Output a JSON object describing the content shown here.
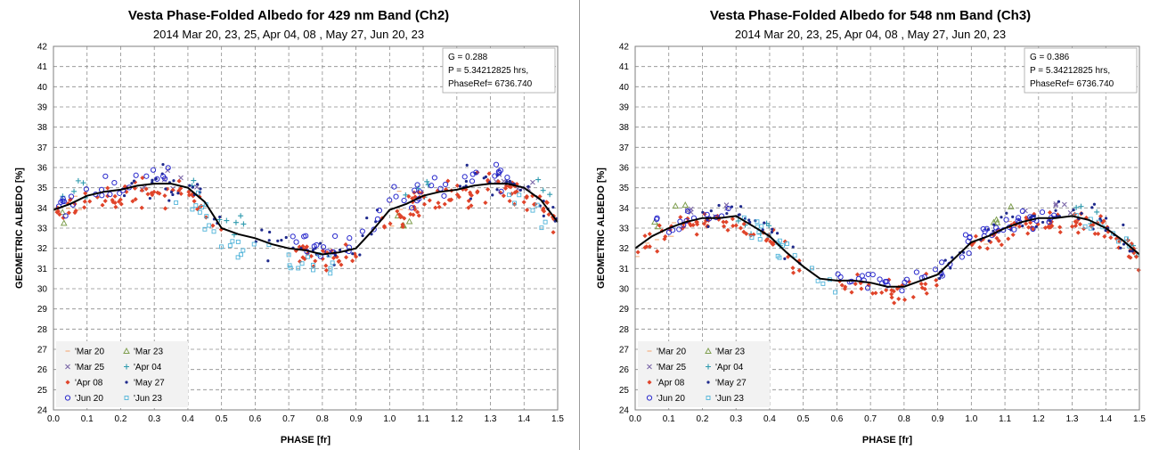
{
  "chart_data": [
    {
      "type": "scatter",
      "title": "Vesta Phase-Folded Albedo for 429 nm Band (Ch2)",
      "subtitle": "2014  Mar 20,  23, 25, Apr 04,  08 , May 27, Jun 20,  23",
      "xlabel": "PHASE [fr]",
      "ylabel": "GEOMETRIC ALBEDO [%]",
      "xlim": [
        0,
        1.5
      ],
      "ylim": [
        24,
        42
      ],
      "xticks": [
        "0.0",
        "0.1",
        "0.2",
        "0.3",
        "0.4",
        "0.5",
        "0.6",
        "0.7",
        "0.8",
        "0.9",
        "1.0",
        "1.1",
        "1.2",
        "1.3",
        "1.4",
        "1.5"
      ],
      "yticks": [
        "24",
        "25",
        "26",
        "27",
        "28",
        "29",
        "30",
        "31",
        "32",
        "33",
        "34",
        "35",
        "36",
        "37",
        "38",
        "39",
        "40",
        "41",
        "42"
      ],
      "grid": true,
      "info_box": [
        "G = 0.288",
        "P = 5.34212825 hrs,",
        "PhaseRef= 6736.740"
      ],
      "legend_position": "bottom-left",
      "legend": [
        "'Mar 20",
        "'Mar 23",
        "'Mar 25",
        "'Apr 04",
        "'Apr 08",
        "'May 27",
        "'Jun 20",
        "'Jun 23"
      ],
      "fit_curve": {
        "x": [
          0.0,
          0.05,
          0.1,
          0.15,
          0.2,
          0.25,
          0.3,
          0.35,
          0.4,
          0.45,
          0.5,
          0.55,
          0.6,
          0.65,
          0.7,
          0.75,
          0.8,
          0.85,
          0.9,
          0.95,
          1.0,
          1.05,
          1.1,
          1.15,
          1.2,
          1.25,
          1.3,
          1.35,
          1.4,
          1.45,
          1.5
        ],
        "y": [
          33.9,
          34.2,
          34.6,
          34.8,
          34.9,
          35.1,
          35.2,
          35.2,
          35.0,
          34.3,
          33.0,
          32.7,
          32.5,
          32.2,
          32.0,
          31.9,
          31.7,
          31.8,
          32.0,
          32.9,
          33.9,
          34.2,
          34.6,
          34.8,
          34.9,
          35.1,
          35.2,
          35.2,
          35.0,
          34.4,
          33.3
        ]
      },
      "scatter_model": {
        "x": [
          0.0,
          0.05,
          0.1,
          0.15,
          0.2,
          0.25,
          0.3,
          0.35,
          0.4,
          0.45,
          0.5,
          0.55,
          0.6,
          0.65,
          0.7,
          0.75,
          0.8,
          0.85,
          0.9,
          0.95,
          1.0,
          1.05,
          1.1,
          1.15,
          1.2,
          1.25,
          1.3,
          1.35,
          1.4,
          1.45,
          1.5
        ],
        "y": [
          33.9,
          34.2,
          34.6,
          34.8,
          34.9,
          35.1,
          35.2,
          35.2,
          35.0,
          34.3,
          33.0,
          32.7,
          32.5,
          32.2,
          32.0,
          31.9,
          31.7,
          31.8,
          32.0,
          32.9,
          33.9,
          34.2,
          34.6,
          34.8,
          34.9,
          35.1,
          35.2,
          35.2,
          35.0,
          34.4,
          33.3
        ],
        "spread": 0.55,
        "series": [
          {
            "name": "'Mar 20",
            "marker": "dash",
            "color": "#f4b183",
            "ranges": [
              [
                0.0,
                0.12
              ],
              [
                1.0,
                1.12
              ]
            ],
            "n": 10,
            "offset": 0.0
          },
          {
            "name": "'Mar 23",
            "marker": "triangle",
            "color": "#7f9f4f",
            "ranges": [
              [
                0.0,
                0.08
              ],
              [
                1.0,
                1.08
              ]
            ],
            "n": 6,
            "offset": -0.3
          },
          {
            "name": "'Mar 25",
            "marker": "x",
            "color": "#7b67a8",
            "ranges": [
              [
                0.25,
                0.45
              ],
              [
                1.25,
                1.45
              ]
            ],
            "n": 16,
            "offset": 0.2
          },
          {
            "name": "'Apr 04",
            "marker": "plus",
            "color": "#2e9aae",
            "ranges": [
              [
                0.0,
                0.12
              ],
              [
                0.4,
                0.6
              ],
              [
                1.0,
                1.12
              ],
              [
                1.4,
                1.5
              ]
            ],
            "n": 22,
            "offset": 0.5
          },
          {
            "name": "'Apr 08",
            "marker": "diamond",
            "color": "#e0442a",
            "ranges": [
              [
                0.0,
                0.5
              ],
              [
                0.7,
                0.9
              ],
              [
                0.95,
                1.5
              ]
            ],
            "n": 190,
            "offset": -0.3
          },
          {
            "name": "'May 27",
            "marker": "dot",
            "color": "#1f2a8c",
            "ranges": [
              [
                0.2,
                0.5
              ],
              [
                0.6,
                1.0
              ],
              [
                1.2,
                1.5
              ]
            ],
            "n": 80,
            "offset": 0.1
          },
          {
            "name": "'Jun 20",
            "marker": "circle",
            "color": "#2a2acc",
            "ranges": [
              [
                0.0,
                0.35
              ],
              [
                0.7,
                1.35
              ]
            ],
            "n": 70,
            "offset": 0.4
          },
          {
            "name": "'Jun 23",
            "marker": "square",
            "color": "#4fb3d9",
            "ranges": [
              [
                0.35,
                0.85
              ],
              [
                1.35,
                1.5
              ]
            ],
            "n": 40,
            "offset": -0.6
          }
        ]
      }
    },
    {
      "type": "scatter",
      "title": "Vesta Phase-Folded Albedo for 548 nm Band (Ch3)",
      "subtitle": "2014  Mar 20,  23, 25, Apr 04,  08 , May 27, Jun 20,  23",
      "xlabel": "PHASE [fr]",
      "ylabel": "GEOMETRIC ALBEDO [%]",
      "xlim": [
        0,
        1.5
      ],
      "ylim": [
        24,
        42
      ],
      "xticks": [
        "0.0",
        "0.1",
        "0.2",
        "0.3",
        "0.4",
        "0.5",
        "0.6",
        "0.7",
        "0.8",
        "0.9",
        "1.0",
        "1.1",
        "1.2",
        "1.3",
        "1.4",
        "1.5"
      ],
      "yticks": [
        "24",
        "25",
        "26",
        "27",
        "28",
        "29",
        "30",
        "31",
        "32",
        "33",
        "34",
        "35",
        "36",
        "37",
        "38",
        "39",
        "40",
        "41",
        "42"
      ],
      "grid": true,
      "info_box": [
        "G = 0.386",
        "P = 5.34212825 hrs,",
        "PhaseRef= 6736.740"
      ],
      "legend_position": "bottom-left",
      "legend": [
        "'Mar 20",
        "'Mar 23",
        "'Mar 25",
        "'Apr 04",
        "'Apr 08",
        "'May 27",
        "'Jun 20",
        "'Jun 23"
      ],
      "fit_curve": {
        "x": [
          0.0,
          0.05,
          0.1,
          0.15,
          0.2,
          0.25,
          0.3,
          0.35,
          0.4,
          0.45,
          0.5,
          0.55,
          0.6,
          0.65,
          0.7,
          0.75,
          0.8,
          0.85,
          0.9,
          0.95,
          1.0,
          1.05,
          1.1,
          1.15,
          1.2,
          1.25,
          1.3,
          1.35,
          1.4,
          1.45,
          1.5
        ],
        "y": [
          32.0,
          32.6,
          33.0,
          33.3,
          33.5,
          33.5,
          33.6,
          33.1,
          32.6,
          31.8,
          31.1,
          30.5,
          30.4,
          30.4,
          30.3,
          30.1,
          30.1,
          30.4,
          30.7,
          31.5,
          32.3,
          32.6,
          33.0,
          33.3,
          33.5,
          33.5,
          33.6,
          33.4,
          33.0,
          32.4,
          31.7
        ]
      },
      "scatter_model": {
        "x": [
          0.0,
          0.05,
          0.1,
          0.15,
          0.2,
          0.25,
          0.3,
          0.35,
          0.4,
          0.45,
          0.5,
          0.55,
          0.6,
          0.65,
          0.7,
          0.75,
          0.8,
          0.85,
          0.9,
          0.95,
          1.0,
          1.05,
          1.1,
          1.15,
          1.2,
          1.25,
          1.3,
          1.35,
          1.4,
          1.45,
          1.5
        ],
        "y": [
          32.0,
          32.6,
          33.0,
          33.3,
          33.5,
          33.5,
          33.6,
          33.1,
          32.6,
          31.8,
          31.1,
          30.5,
          30.4,
          30.4,
          30.3,
          30.1,
          30.1,
          30.4,
          30.7,
          31.5,
          32.3,
          32.6,
          33.0,
          33.3,
          33.5,
          33.5,
          33.6,
          33.4,
          33.0,
          32.4,
          31.7
        ],
        "spread": 0.45,
        "series": [
          {
            "name": "'Mar 20",
            "marker": "dash",
            "color": "#f4b183",
            "ranges": [
              [
                0.0,
                0.12
              ],
              [
                1.0,
                1.12
              ]
            ],
            "n": 10,
            "offset": 0.0
          },
          {
            "name": "'Mar 23",
            "marker": "triangle",
            "color": "#7f9f4f",
            "ranges": [
              [
                0.05,
                0.15
              ],
              [
                1.05,
                1.15
              ]
            ],
            "n": 8,
            "offset": 0.5
          },
          {
            "name": "'Mar 25",
            "marker": "x",
            "color": "#7b67a8",
            "ranges": [
              [
                0.15,
                0.3
              ],
              [
                1.15,
                1.3
              ]
            ],
            "n": 12,
            "offset": 0.4
          },
          {
            "name": "'Apr 04",
            "marker": "plus",
            "color": "#2e9aae",
            "ranges": [
              [
                0.3,
                0.5
              ],
              [
                1.3,
                1.5
              ]
            ],
            "n": 14,
            "offset": 0.2
          },
          {
            "name": "'Apr 08",
            "marker": "diamond",
            "color": "#e0442a",
            "ranges": [
              [
                0.0,
                0.5
              ],
              [
                0.6,
                0.9
              ],
              [
                1.0,
                1.5
              ]
            ],
            "n": 180,
            "offset": -0.2
          },
          {
            "name": "'May 27",
            "marker": "dot",
            "color": "#1f2a8c",
            "ranges": [
              [
                0.2,
                0.5
              ],
              [
                0.9,
                1.5
              ]
            ],
            "n": 70,
            "offset": 0.2
          },
          {
            "name": "'Jun 20",
            "marker": "circle",
            "color": "#2a2acc",
            "ranges": [
              [
                0.0,
                0.3
              ],
              [
                0.6,
                1.3
              ]
            ],
            "n": 70,
            "offset": 0.1
          },
          {
            "name": "'Jun 23",
            "marker": "square",
            "color": "#4fb3d9",
            "ranges": [
              [
                0.3,
                0.6
              ],
              [
                1.3,
                1.5
              ]
            ],
            "n": 30,
            "offset": 0.0
          }
        ]
      }
    }
  ]
}
